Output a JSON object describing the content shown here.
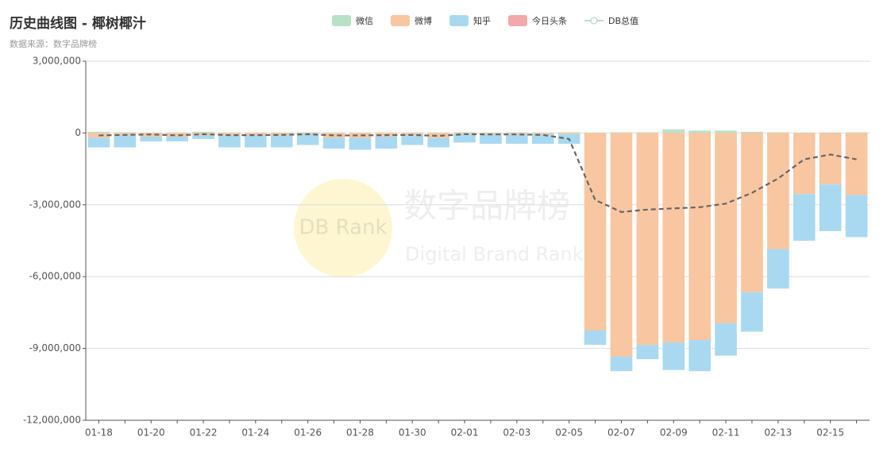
{
  "chart_data": {
    "type": "bar",
    "title": "历史曲线图 - 椰树椰汁",
    "subtitle": "数据来源：数字品牌榜",
    "watermark": {
      "logo": "DB Rank",
      "name": "数字品牌榜",
      "name_en": "Digital Brand Rank"
    },
    "categories": [
      "01-18",
      null,
      "01-20",
      null,
      "01-22",
      null,
      "01-24",
      null,
      "01-26",
      null,
      "01-28",
      null,
      "01-30",
      null,
      "02-01",
      null,
      "02-03",
      null,
      "02-05",
      null,
      "02-07",
      null,
      "02-09",
      null,
      "02-11",
      null,
      "02-13",
      null,
      "02-15",
      null
    ],
    "series": [
      {
        "name": "微信",
        "color": "#b9e1c6",
        "values": [
          50000,
          30000,
          20000,
          20000,
          50000,
          20000,
          20000,
          20000,
          30000,
          20000,
          20000,
          20000,
          20000,
          20000,
          30000,
          20000,
          30000,
          20000,
          30000,
          20000,
          30000,
          30000,
          150000,
          100000,
          100000,
          50000,
          30000,
          20000,
          20000,
          30000
        ]
      },
      {
        "name": "微博",
        "color": "#f8c6a1",
        "values": [
          -200000,
          -100000,
          -150000,
          -150000,
          -100000,
          -100000,
          -100000,
          -100000,
          -50000,
          -200000,
          -200000,
          -150000,
          -100000,
          -200000,
          -50000,
          -50000,
          -50000,
          -50000,
          -50000,
          -8250000,
          -9350000,
          -8850000,
          -8750000,
          -8650000,
          -7950000,
          -6650000,
          -4850000,
          -2550000,
          -2150000,
          -2600000
        ]
      },
      {
        "name": "知乎",
        "color": "#a9d9f1",
        "values": [
          -400000,
          -500000,
          -200000,
          -200000,
          -150000,
          -500000,
          -500000,
          -500000,
          -450000,
          -450000,
          -500000,
          -500000,
          -400000,
          -400000,
          -350000,
          -400000,
          -400000,
          -400000,
          -400000,
          -600000,
          -600000,
          -600000,
          -1150000,
          -1300000,
          -1350000,
          -1650000,
          -1650000,
          -1950000,
          -1950000,
          -1750000
        ]
      },
      {
        "name": "今日头条",
        "color": "#f1a9a9",
        "values": [
          0,
          0,
          0,
          0,
          0,
          0,
          0,
          0,
          0,
          0,
          0,
          0,
          0,
          0,
          0,
          0,
          0,
          0,
          0,
          0,
          0,
          0,
          0,
          0,
          0,
          0,
          0,
          0,
          0,
          0
        ]
      },
      {
        "name": "DB总值",
        "color": "#666666",
        "type": "line",
        "values": [
          -100000,
          -80000,
          -60000,
          -100000,
          -50000,
          -90000,
          -90000,
          -80000,
          -50000,
          -100000,
          -100000,
          -90000,
          -80000,
          -120000,
          -50000,
          -60000,
          -60000,
          -80000,
          -250000,
          -2800000,
          -3300000,
          -3200000,
          -3150000,
          -3100000,
          -2950000,
          -2500000,
          -1900000,
          -1100000,
          -900000,
          -1100000
        ]
      }
    ],
    "ylim": [
      -12000000,
      3000000
    ],
    "yticks": [
      {
        "value": -12000000,
        "label": "-12,000,000"
      },
      {
        "value": -9000000,
        "label": "-9,000,000"
      },
      {
        "value": -6000000,
        "label": "-6,000,000"
      },
      {
        "value": -3000000,
        "label": "-3,000,000"
      },
      0,
      {
        "value": 3000000,
        "label": "3,000,000"
      }
    ],
    "grid": true,
    "legend": "top"
  }
}
